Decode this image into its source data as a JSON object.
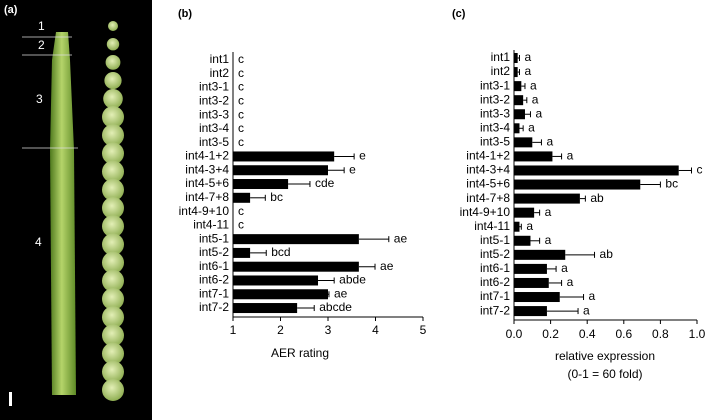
{
  "photo": {
    "panel_label": "(a)",
    "segment_labels": [
      "1",
      "2",
      "3",
      "4"
    ]
  },
  "chart_data": [
    {
      "type": "bar",
      "orientation": "horizontal",
      "panel_label": "(b)",
      "xlabel": "AER rating",
      "categories": [
        "int1",
        "int2",
        "int3-1",
        "int3-2",
        "int3-3",
        "int3-4",
        "int3-5",
        "int4-1+2",
        "int4-3+4",
        "int4-5+6",
        "int4-7+8",
        "int4-9+10",
        "int4-11",
        "int5-1",
        "int5-2",
        "int6-1",
        "int6-2",
        "int7-1",
        "int7-2"
      ],
      "values": [
        1,
        1,
        1,
        1,
        1,
        1,
        1,
        3.13,
        3.0,
        2.16,
        1.36,
        1,
        1,
        3.65,
        1.36,
        3.65,
        2.79,
        3.0,
        2.35
      ],
      "errors": [
        0,
        0,
        0,
        0,
        0,
        0,
        0,
        0.42,
        0.34,
        0.46,
        0.32,
        0,
        0,
        0.63,
        0.34,
        0.34,
        0.34,
        0.02,
        0.36
      ],
      "letters": [
        "c",
        "c",
        "c",
        "c",
        "c",
        "c",
        "c",
        "e",
        "e",
        "cde",
        "bc",
        "c",
        "c",
        "ae",
        "bcd",
        "ae",
        "abde",
        "ae",
        "abcde"
      ],
      "color": "#000000",
      "xlim": [
        1,
        5
      ],
      "xticks": [
        1,
        2,
        3,
        4,
        5
      ]
    },
    {
      "type": "bar",
      "orientation": "horizontal",
      "panel_label": "(c)",
      "xlabel": "relative expression",
      "xlabel_note": "(0-1 = 60 fold)",
      "categories": [
        "int1",
        "int2",
        "int3-1",
        "int3-2",
        "int3-3",
        "int3-4",
        "int3-5",
        "int4-1+2",
        "int4-3+4",
        "int4-5+6",
        "int4-7+8",
        "int4-9+10",
        "int4-11",
        "int5-1",
        "int5-2",
        "int6-1",
        "int6-2",
        "int7-1",
        "int7-2"
      ],
      "values": [
        0.02,
        0.02,
        0.04,
        0.05,
        0.06,
        0.03,
        0.1,
        0.21,
        0.9,
        0.69,
        0.36,
        0.11,
        0.03,
        0.09,
        0.28,
        0.18,
        0.19,
        0.25,
        0.18
      ],
      "errors": [
        0.01,
        0.01,
        0.02,
        0.02,
        0.03,
        0.02,
        0.05,
        0.05,
        0.07,
        0.11,
        0.03,
        0.03,
        0.01,
        0.05,
        0.16,
        0.05,
        0.07,
        0.13,
        0.17
      ],
      "letters": [
        "a",
        "a",
        "a",
        "a",
        "a",
        "a",
        "a",
        "a",
        "c",
        "bc",
        "ab",
        "a",
        "a",
        "a",
        "ab",
        "a",
        "a",
        "a",
        "a"
      ],
      "color": "#000000",
      "xlim": [
        0,
        1.0
      ],
      "xticks": [
        {
          "value": 0,
          "label": "0.0"
        },
        0.2,
        0.4,
        0.6,
        0.8,
        {
          "value": 1.0,
          "label": "1.0"
        }
      ]
    }
  ]
}
